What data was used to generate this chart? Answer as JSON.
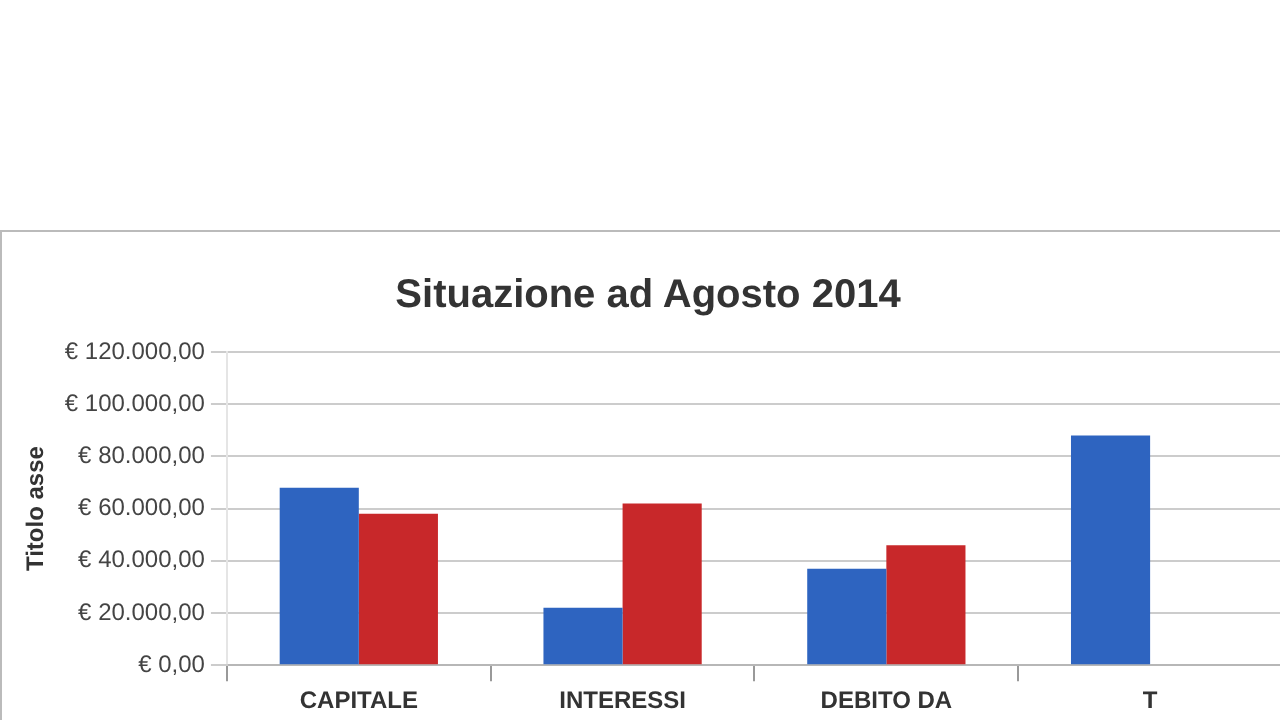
{
  "chart_data": {
    "type": "bar",
    "title": "Situazione ad Agosto 2014",
    "ylabel": "Titolo asse",
    "categories": [
      "CAPITALE",
      "INTERESSI",
      "DEBITO DA",
      "T"
    ],
    "series": [
      {
        "color": "#2e64c0",
        "values": [
          68000,
          22000,
          37000,
          88000
        ]
      },
      {
        "color": "#c8282a",
        "values": [
          58000,
          62000,
          46000,
          null
        ]
      }
    ],
    "ylim": [
      0,
      120000
    ],
    "yticks": [
      {
        "value": 0,
        "label": "€ 0,00"
      },
      {
        "value": 20000,
        "label": "€ 20.000,00"
      },
      {
        "value": 40000,
        "label": "€ 40.000,00"
      },
      {
        "value": 60000,
        "label": "€ 60.000,00"
      },
      {
        "value": 80000,
        "label": "€ 80.000,00"
      },
      {
        "value": 100000,
        "label": "€ 100.000,00"
      },
      {
        "value": 120000,
        "label": "€ 120.000,00"
      }
    ],
    "grid": "y",
    "legend": false
  }
}
